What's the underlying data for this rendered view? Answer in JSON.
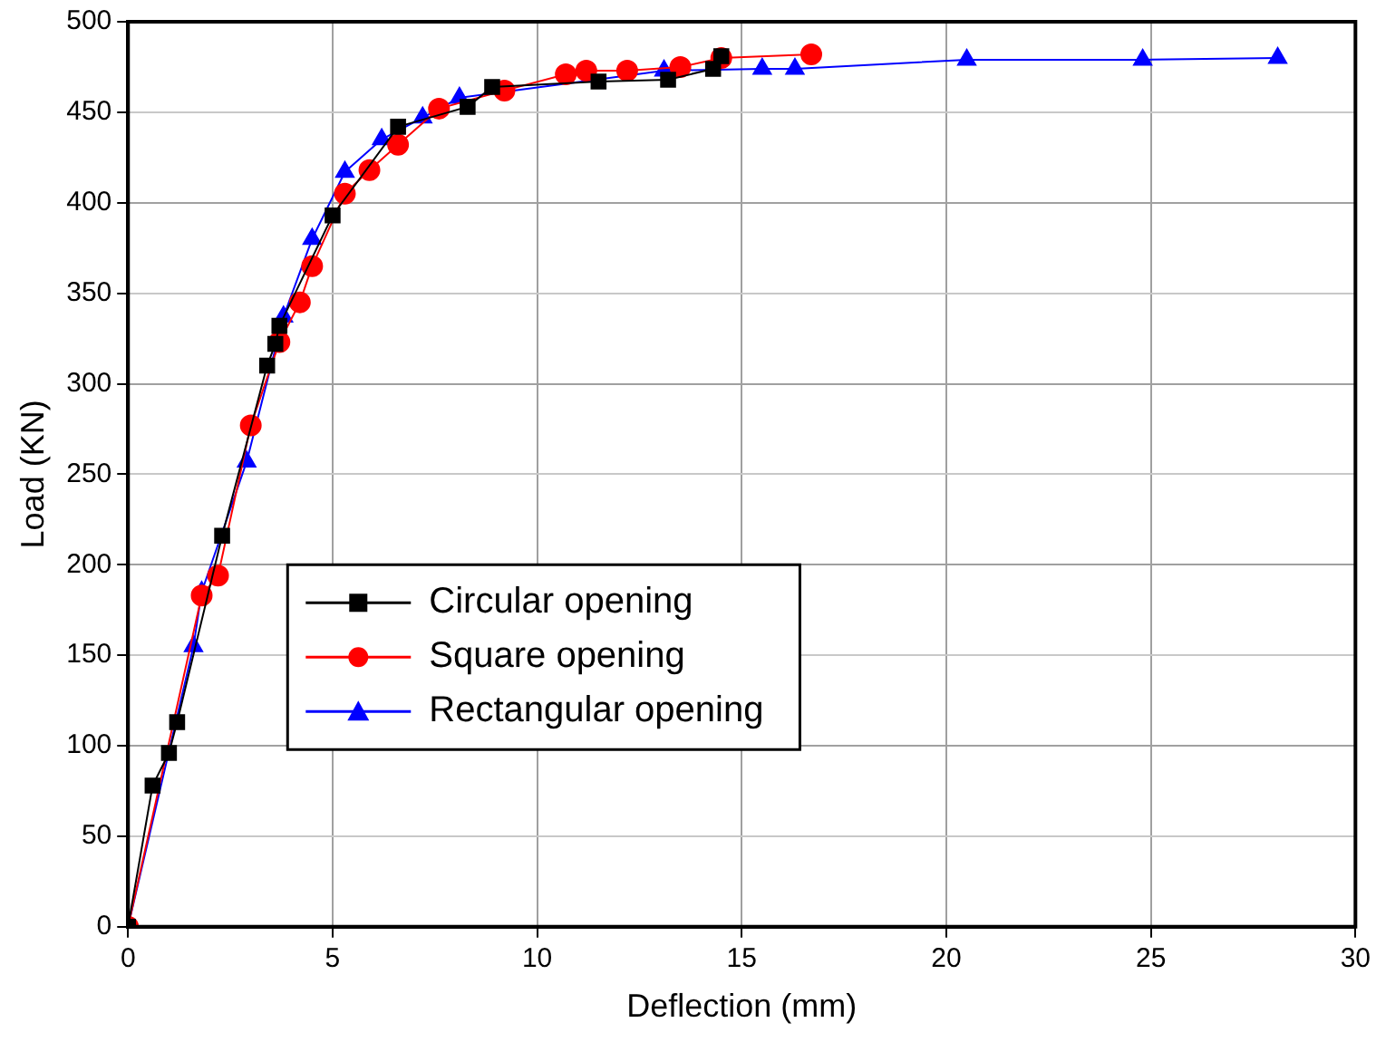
{
  "chart_data": {
    "type": "line",
    "xlabel": "Deflection (mm)",
    "ylabel": "Load (KN)",
    "xlim": [
      0,
      30
    ],
    "ylim": [
      0,
      500
    ],
    "xticks": [
      0,
      5,
      10,
      15,
      20,
      25,
      30
    ],
    "yticks": [
      0,
      50,
      100,
      150,
      200,
      250,
      300,
      350,
      400,
      450,
      500
    ],
    "grid": true,
    "legend": "center left",
    "line_style": "solid",
    "series": [
      {
        "name": "Circular opening",
        "color": "#000000",
        "marker": "square",
        "x": [
          0,
          0.6,
          1,
          1.2,
          2.3,
          3.4,
          3.6,
          3.7,
          5,
          6.6,
          8.3,
          8.9,
          11.5,
          13.2,
          14.3,
          14.5
        ],
        "values": [
          0,
          78,
          96,
          113,
          216,
          310,
          322,
          332,
          393,
          442,
          453,
          464,
          467,
          468,
          474,
          481
        ]
      },
      {
        "name": "Square opening",
        "color": "#ff0000",
        "marker": "circle",
        "x": [
          0,
          1.8,
          2.2,
          3,
          3.7,
          4.2,
          4.5,
          5.3,
          5.9,
          6.6,
          7.6,
          9.2,
          10.7,
          11.2,
          12.2,
          13.5,
          14.5,
          16.7
        ],
        "values": [
          0,
          183,
          194,
          277,
          323,
          345,
          365,
          405,
          418,
          432,
          452,
          462,
          471,
          473,
          473,
          475,
          480,
          482
        ]
      },
      {
        "name": "Rectangular opening",
        "color": "#0000ff",
        "marker": "triangle",
        "x": [
          0,
          1.6,
          1.8,
          2.9,
          3.8,
          4.5,
          5.3,
          6.2,
          7.2,
          8.1,
          13.1,
          15.5,
          16.3,
          20.5,
          24.8,
          28.1
        ],
        "values": [
          0,
          155,
          185,
          257,
          337,
          380,
          417,
          435,
          447,
          458,
          473,
          474,
          474,
          479,
          479,
          480
        ]
      }
    ]
  }
}
